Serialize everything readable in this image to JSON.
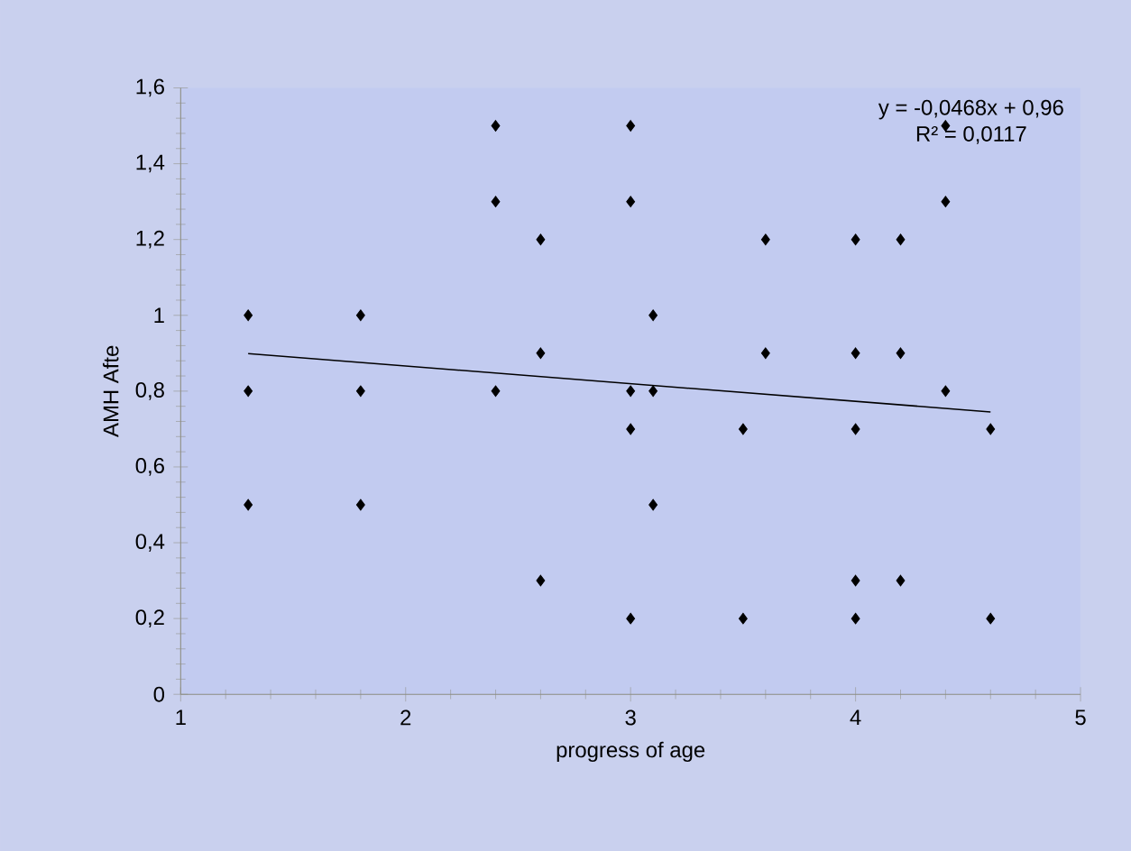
{
  "chart_data": {
    "type": "scatter",
    "xlabel": "progress  of age",
    "ylabel": "AMH Afte",
    "series": [
      {
        "marker": "diamond",
        "color": "#000000",
        "x": [
          1.3,
          1.3,
          1.3,
          1.8,
          1.8,
          1.8,
          2.4,
          2.4,
          2.4,
          2.6,
          2.6,
          2.6,
          3.0,
          3.0,
          3.0,
          3.0,
          3.0,
          3.1,
          3.1,
          3.1,
          3.5,
          3.5,
          3.6,
          3.6,
          4.0,
          4.0,
          4.0,
          4.0,
          4.0,
          4.2,
          4.2,
          4.2,
          4.4,
          4.4,
          4.4,
          4.6,
          4.6
        ],
        "values": [
          1.0,
          0.8,
          0.5,
          1.0,
          0.8,
          0.5,
          1.5,
          1.3,
          0.8,
          1.2,
          0.9,
          0.3,
          1.5,
          1.3,
          0.8,
          0.7,
          0.2,
          1.0,
          0.8,
          0.5,
          0.7,
          0.2,
          1.2,
          0.9,
          1.2,
          0.9,
          0.7,
          0.3,
          0.2,
          1.2,
          0.9,
          0.3,
          1.5,
          1.3,
          0.8,
          0.7,
          0.2
        ]
      },
      {
        "type": "line",
        "marker": "none",
        "color": "#000000",
        "x": [
          1.3,
          4.6
        ],
        "values": [
          0.899,
          0.745
        ]
      }
    ],
    "annotations": [
      "y = -0,0468x + 0,96",
      "R² = 0,0117"
    ],
    "xlim": [
      1,
      5
    ],
    "xticks": [
      1,
      2,
      3,
      4,
      5
    ],
    "ylim": [
      0,
      1.6
    ],
    "yticks": [
      0,
      {
        "value": 0.2,
        "label": "0,2"
      },
      {
        "value": 0.4,
        "label": "0,4"
      },
      {
        "value": 0.6,
        "label": "0,6"
      },
      {
        "value": 0.8,
        "label": "0,8"
      },
      1,
      {
        "value": 1.2,
        "label": "1,2"
      },
      {
        "value": 1.4,
        "label": "1,4"
      },
      {
        "value": 1.6,
        "label": "1,6"
      }
    ]
  }
}
